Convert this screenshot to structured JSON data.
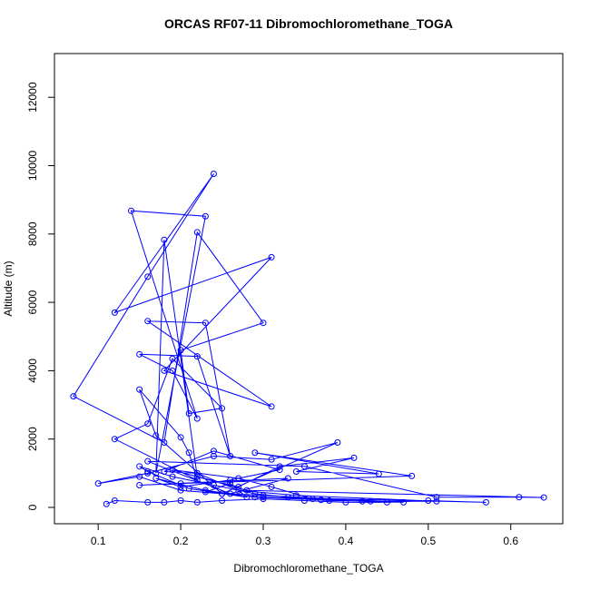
{
  "chart_data": {
    "type": "line",
    "title": "ORCAS RF07-11 Dibromochloromethane_TOGA",
    "x_label": "Dibromochloromethane_TOGA",
    "y_label": "Altitude (m)",
    "xlim": [
      0.047,
      0.663
    ],
    "ylim": [
      -478,
      13280
    ],
    "xticks": [
      0.1,
      0.2,
      0.3,
      0.4,
      0.5,
      0.6
    ],
    "yticks": [
      0,
      2000,
      4000,
      6000,
      8000,
      10000,
      12000
    ],
    "grid": false,
    "markers": true,
    "x": [
      0.11,
      0.12,
      0.16,
      0.18,
      0.2,
      0.22,
      0.25,
      0.3,
      0.35,
      0.4,
      0.45,
      0.5,
      0.57,
      0.3,
      0.25,
      0.2,
      0.15,
      0.1,
      0.16,
      0.24,
      0.31,
      0.39,
      0.25,
      0.17,
      0.15,
      0.2,
      0.21,
      0.22,
      0.12,
      0.16,
      0.19,
      0.25,
      0.21,
      0.2,
      0.3,
      0.22,
      0.18,
      0.07,
      0.16,
      0.24,
      0.12,
      0.31,
      0.18,
      0.31,
      0.16,
      0.23,
      0.26,
      0.22,
      0.15,
      0.19,
      0.22,
      0.14,
      0.23,
      0.17,
      0.18,
      0.22,
      0.27,
      0.32,
      0.41,
      0.34,
      0.44,
      0.29,
      0.48,
      0.2,
      0.15,
      0.33,
      0.26,
      0.16,
      0.35,
      0.51,
      0.61,
      0.64,
      0.28,
      0.19,
      0.27,
      0.31,
      0.36,
      0.42,
      0.47,
      0.3,
      0.23,
      0.26,
      0.28,
      0.21,
      0.16,
      0.15,
      0.19,
      0.24,
      0.29,
      0.33,
      0.38,
      0.43,
      0.51,
      0.34,
      0.27,
      0.22,
      0.18,
      0.24,
      0.32,
      0.26,
      0.2,
      0.17,
      0.23,
      0.29,
      0.37
    ],
    "series": [
      {
        "name": "Altitude (m)",
        "color": "#0000ff",
        "values": [
          100,
          200,
          150,
          150,
          200,
          150,
          200,
          250,
          200,
          150,
          150,
          200,
          150,
          300,
          400,
          500,
          900,
          700,
          1000,
          1500,
          1400,
          1900,
          400,
          2100,
          3450,
          2050,
          1600,
          800,
          2000,
          2450,
          4350,
          2900,
          2750,
          4600,
          5400,
          8050,
          1900,
          3250,
          6750,
          9760,
          5700,
          7320,
          4000,
          2950,
          5450,
          5400,
          1500,
          4420,
          4480,
          4000,
          2600,
          8680,
          8520,
          1000,
          7830,
          900,
          600,
          1200,
          1450,
          1050,
          980,
          1600,
          920,
          700,
          650,
          850,
          400,
          1350,
          1200,
          300,
          300,
          290,
          500,
          1100,
          850,
          600,
          250,
          180,
          150,
          350,
          450,
          700,
          300,
          550,
          1050,
          1200,
          900,
          650,
          400,
          300,
          200,
          180,
          180,
          350,
          500,
          1000,
          1050,
          1650,
          1100,
          800,
          600,
          850,
          500,
          300,
          220
        ]
      }
    ]
  }
}
